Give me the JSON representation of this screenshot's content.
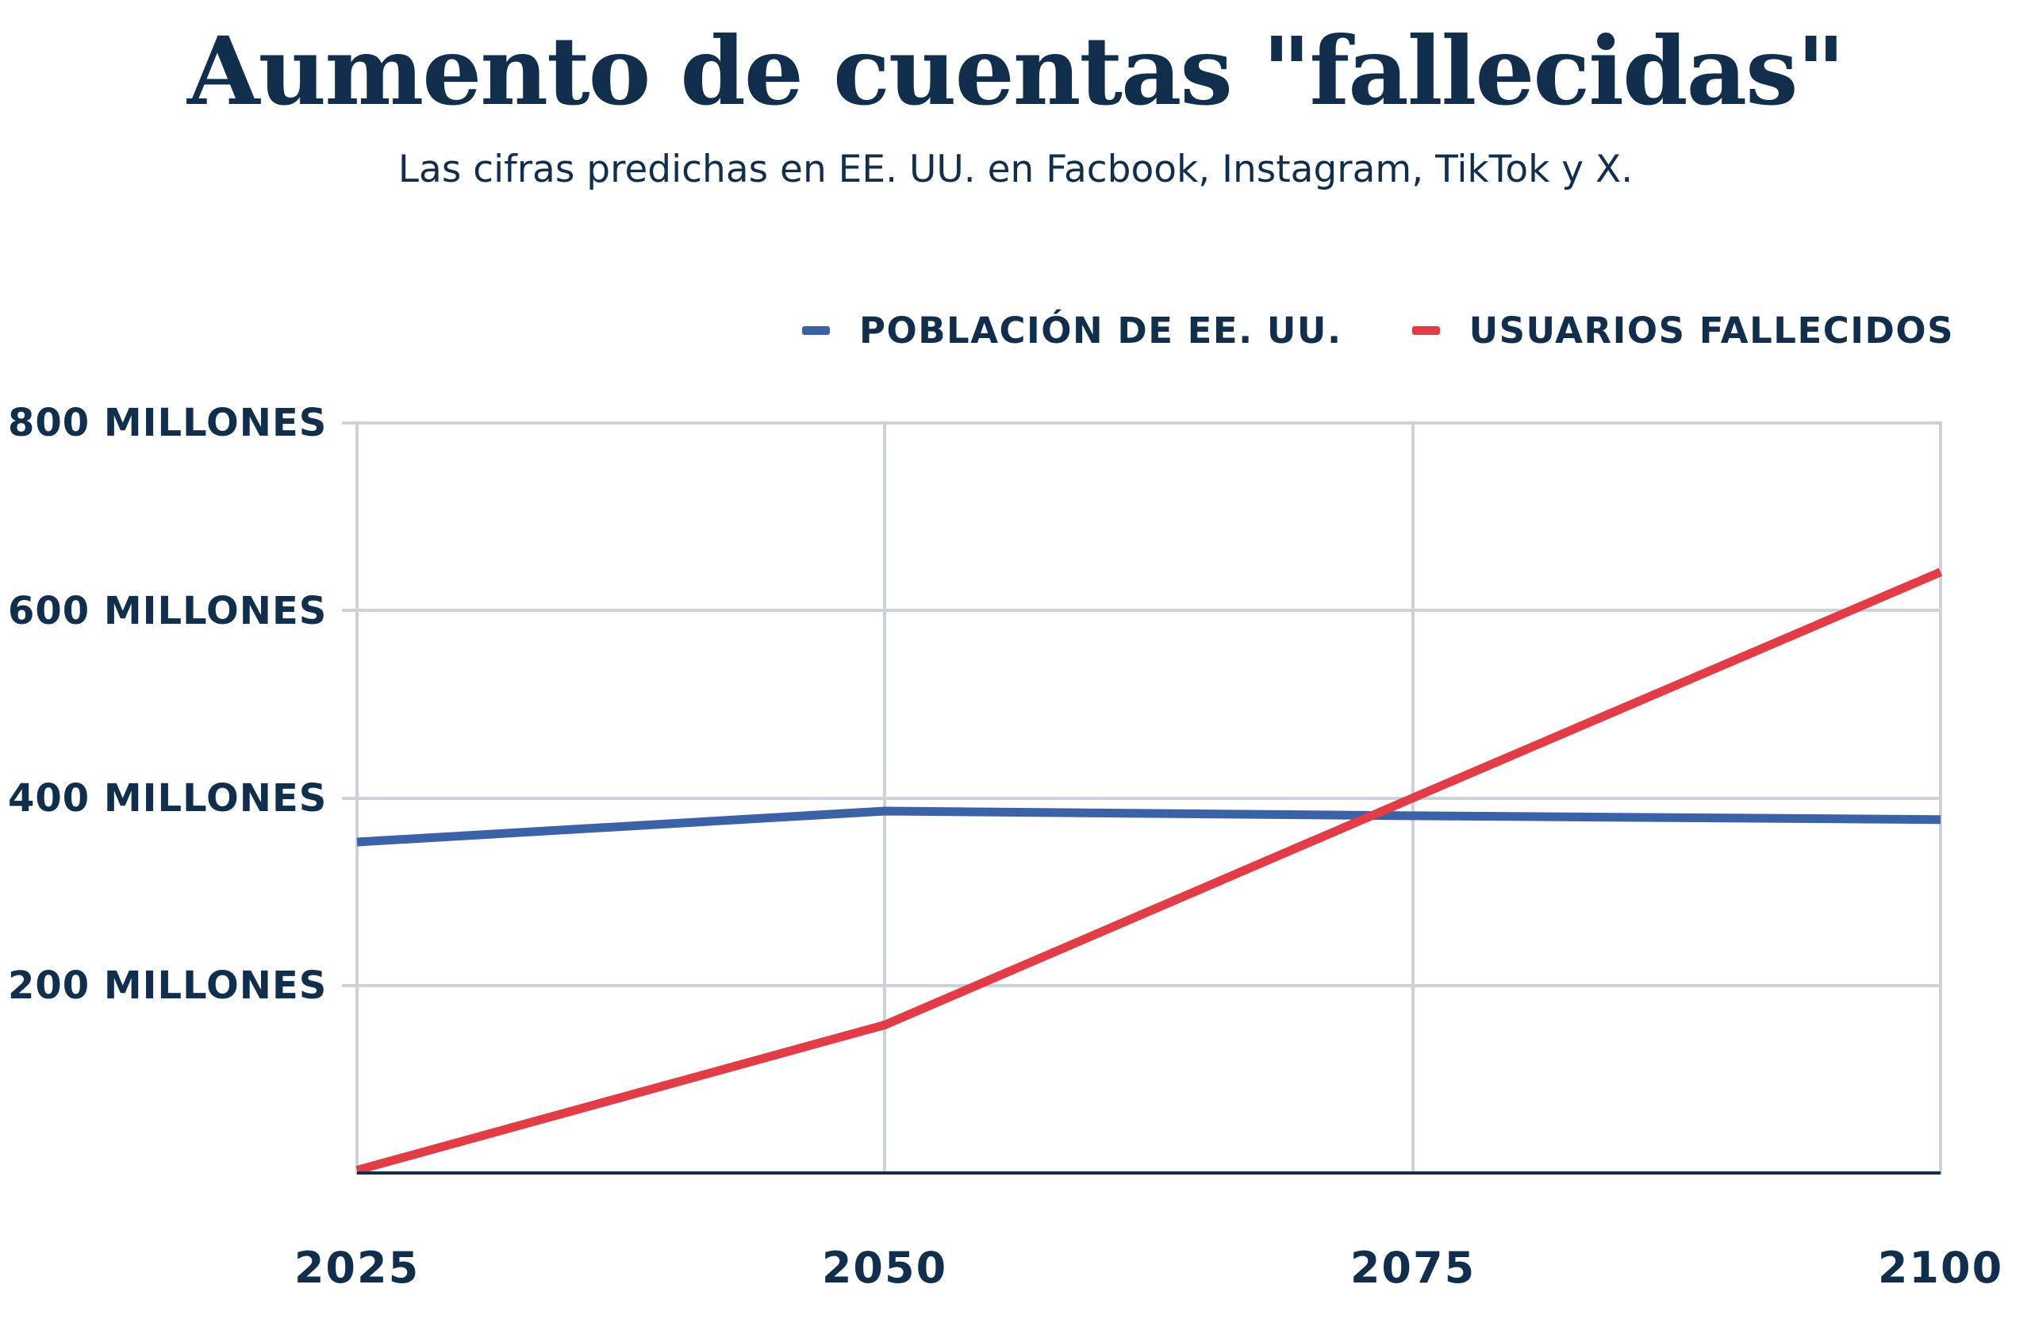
{
  "title": "Aumento de cuentas \"fallecidas\"",
  "subtitle": "Las cifras predichas en EE. UU. en Facbook, Instagram, TikTok y X.",
  "legend": {
    "items": [
      {
        "label": "POBLACIÓN DE EE. UU.",
        "color": "#3b62a7"
      },
      {
        "label": "USUARIOS FALLECIDOS",
        "color": "#e23c46"
      }
    ]
  },
  "axes": {
    "y_ticks": [
      "800 MILLONES",
      "600 MILLONES",
      "400 MILLONES",
      "200 MILLONES"
    ],
    "x_ticks": [
      "2025",
      "2050",
      "2075",
      "2100"
    ]
  },
  "colors": {
    "text_navy": "#112f4c",
    "gridline_gray": "#cdd2d9",
    "axis_navy": "#12304b",
    "background": "#ffffff",
    "series_blue": "#3b62a7",
    "series_red": "#e23c46"
  },
  "chart_data": {
    "type": "line",
    "title": "Aumento de cuentas \"fallecidas\"",
    "subtitle": "Las cifras predichas en EE. UU. en Facbook, Instagram, TikTok y X.",
    "x": [
      2025,
      2050,
      2075,
      2100
    ],
    "x_tick_labels": [
      "2025",
      "2050",
      "2075",
      "2100"
    ],
    "series": [
      {
        "name": "POBLACIÓN DE EE. UU.",
        "color": "#3b62a7",
        "values": [
          353,
          386,
          381,
          377
        ]
      },
      {
        "name": "USUARIOS FALLECIDOS",
        "color": "#e23c46",
        "values": [
          3,
          158,
          400,
          641
        ]
      }
    ],
    "unit": "millones",
    "xlabel": "",
    "ylabel": "",
    "ylim": [
      0,
      800
    ],
    "y_tick_interval": 200,
    "y_tick_labels": [
      "200 MILLONES",
      "400 MILLONES",
      "600 MILLONES",
      "800 MILLONES"
    ],
    "grid": true,
    "legend_position": "top-right"
  }
}
